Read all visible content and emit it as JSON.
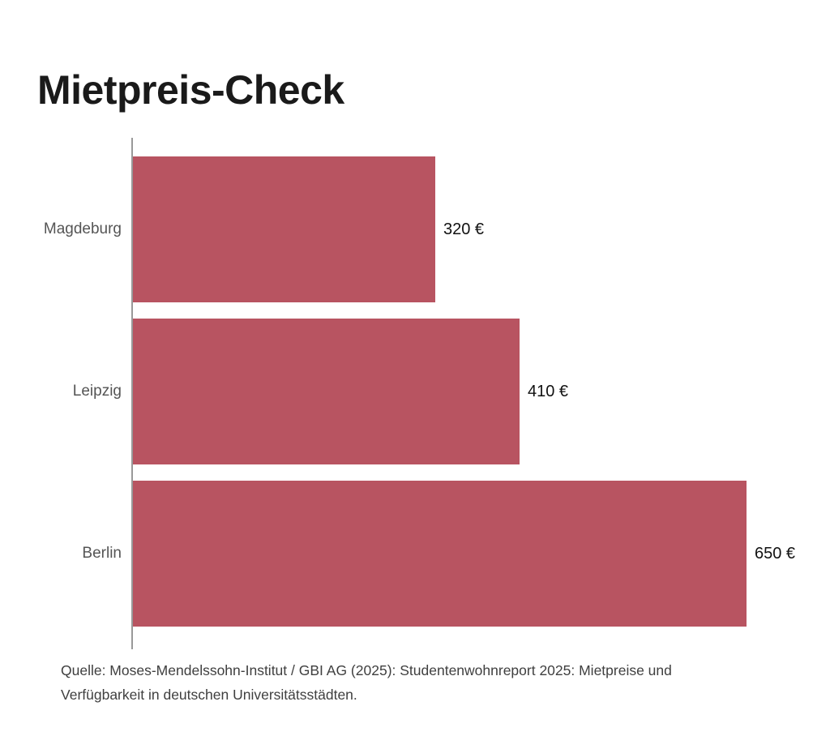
{
  "title": "Mietpreis-Check",
  "source_note": "Quelle: Moses-Mendelssohn-Institut / GBI AG (2025): Studentenwohnreport 2025: Mietpreise und Verfügbarkeit in deutschen Universitätsstädten.",
  "colors": {
    "background": "#ffffff",
    "bar": "#b85461",
    "axis": "#999999",
    "title_text": "#1a1a1a",
    "category_text": "#555555",
    "value_text": "#111111",
    "source_text": "#3f3f3f"
  },
  "chart_data": {
    "type": "bar",
    "orientation": "horizontal",
    "title": "Mietpreis-Check",
    "xlabel": "",
    "ylabel": "",
    "categories": [
      "Magdeburg",
      "Leipzig",
      "Berlin"
    ],
    "values": [
      320,
      410,
      650
    ],
    "value_labels": [
      "320 €",
      "410 €",
      "650 €"
    ],
    "unit": "€",
    "xlim": [
      0,
      650
    ],
    "grid": false,
    "legend": false,
    "bar_color": "#b85461",
    "source": "Quelle: Moses-Mendelssohn-Institut / GBI AG (2025): Studentenwohnreport 2025: Mietpreise und Verfügbarkeit in deutschen Universitätsstädten."
  }
}
